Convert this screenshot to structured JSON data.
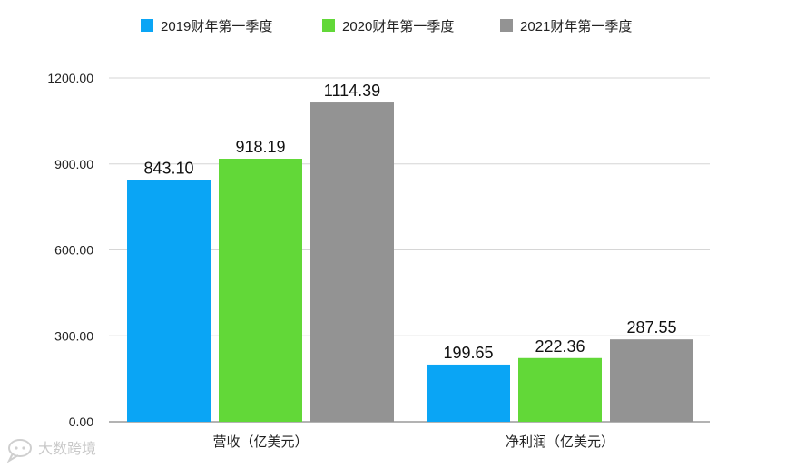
{
  "chart_data": {
    "type": "bar",
    "categories": [
      "营收（亿美元）",
      "净利润（亿美元）"
    ],
    "series": [
      {
        "name": "2019财年第一季度",
        "color": "#0aa5f5",
        "values": [
          843.1,
          199.65
        ]
      },
      {
        "name": "2020财年第一季度",
        "color": "#62d838",
        "values": [
          918.19,
          222.36
        ]
      },
      {
        "name": "2021财年第一季度",
        "color": "#939393",
        "values": [
          1114.39,
          287.55
        ]
      }
    ],
    "value_labels": [
      [
        "843.10",
        "199.65"
      ],
      [
        "918.19",
        "222.36"
      ],
      [
        "1114.39",
        "287.55"
      ]
    ],
    "yticks": [
      "0.00",
      "300.00",
      "600.00",
      "900.00",
      "1200.00"
    ],
    "ylim": [
      0,
      1200
    ],
    "grid": true,
    "legend_position": "top"
  },
  "watermark": {
    "text": "大数跨境",
    "icon": "chat-bubble-logo-icon"
  }
}
